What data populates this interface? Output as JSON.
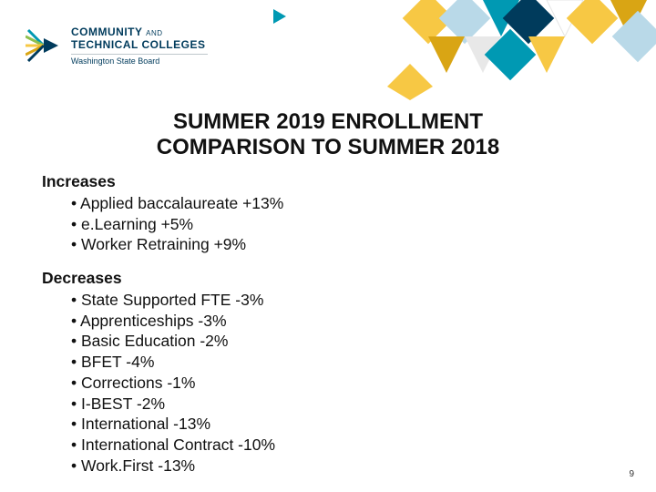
{
  "logo": {
    "line1a": "COMMUNITY",
    "line1b": "AND",
    "line2": "TECHNICAL COLLEGES",
    "sub": "Washington State Board"
  },
  "title": {
    "line1": "SUMMER 2019 ENROLLMENT",
    "line2": "COMPARISON TO SUMMER 2018"
  },
  "increases": {
    "header": "Increases",
    "items": [
      "Applied baccalaureate +13%",
      "e.Learning +5%",
      "Worker Retraining +9%"
    ]
  },
  "decreases": {
    "header": "Decreases",
    "items": [
      "State Supported FTE -3%",
      "Apprenticeships -3%",
      "Basic Education -2%",
      "BFET -4%",
      "Corrections -1%",
      "I-BEST -2%",
      "International -13%",
      "International Contract -10%",
      "Work.First -13%"
    ]
  },
  "pageNumber": "9",
  "colors": {
    "navy": "#003b5c",
    "teal": "#0099b3",
    "yellow": "#f7c844",
    "lightblue": "#b9d9e8",
    "gold": "#d9a514",
    "green": "#8fbf4d"
  }
}
